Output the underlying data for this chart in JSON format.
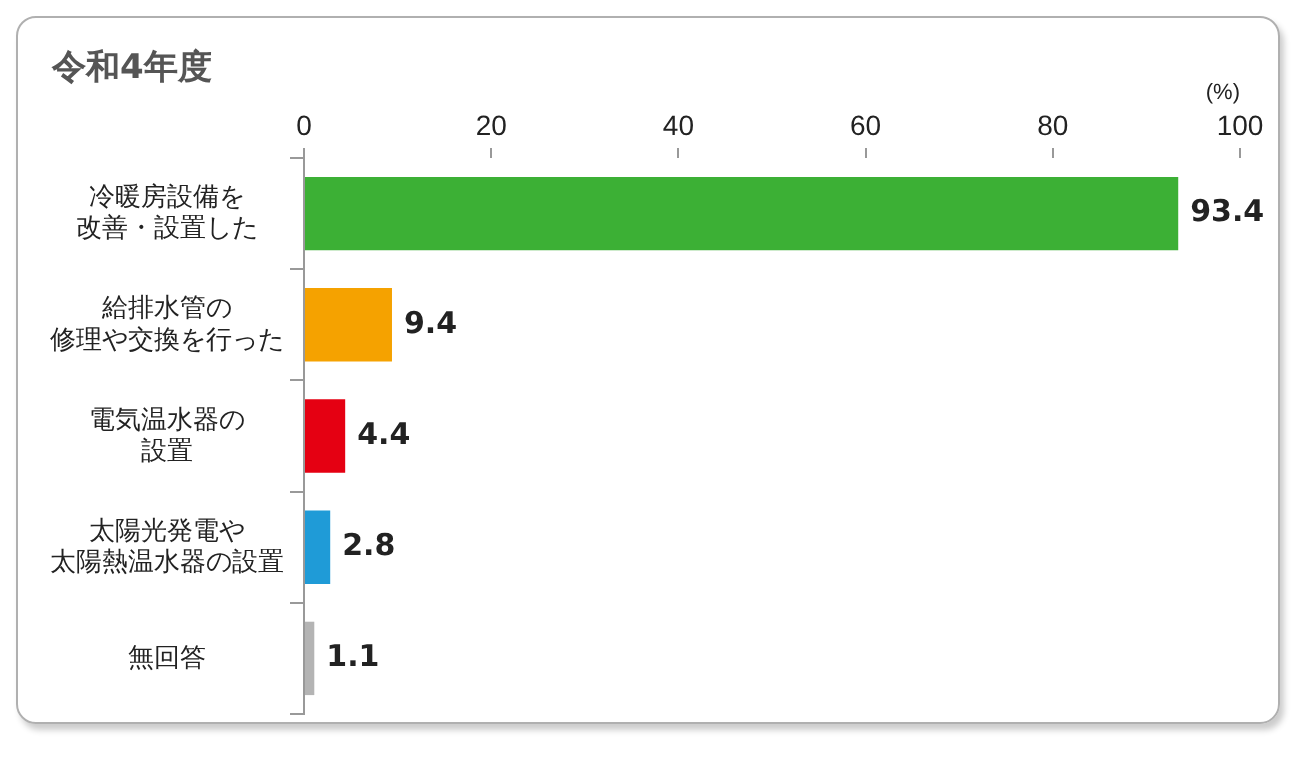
{
  "chart_data": {
    "type": "bar",
    "orientation": "horizontal",
    "title": "令和4年度",
    "xlabel": "(%)",
    "categories": [
      "冷暖房設備を改善・設置した",
      "給排水管の修理や交換を行った",
      "電気温水器の設置",
      "太陽光発電や太陽熱温水器の設置",
      "無回答"
    ],
    "values": [
      93.4,
      9.4,
      4.4,
      2.8,
      1.1
    ],
    "colors": [
      "#3cb035",
      "#f5a200",
      "#e50012",
      "#1f9bd7",
      "#b4b4b4"
    ],
    "xlim": [
      0,
      100
    ],
    "xticks": [
      0,
      20,
      40,
      60,
      80,
      100
    ],
    "grid": false,
    "legend": false,
    "data_labels": true
  }
}
